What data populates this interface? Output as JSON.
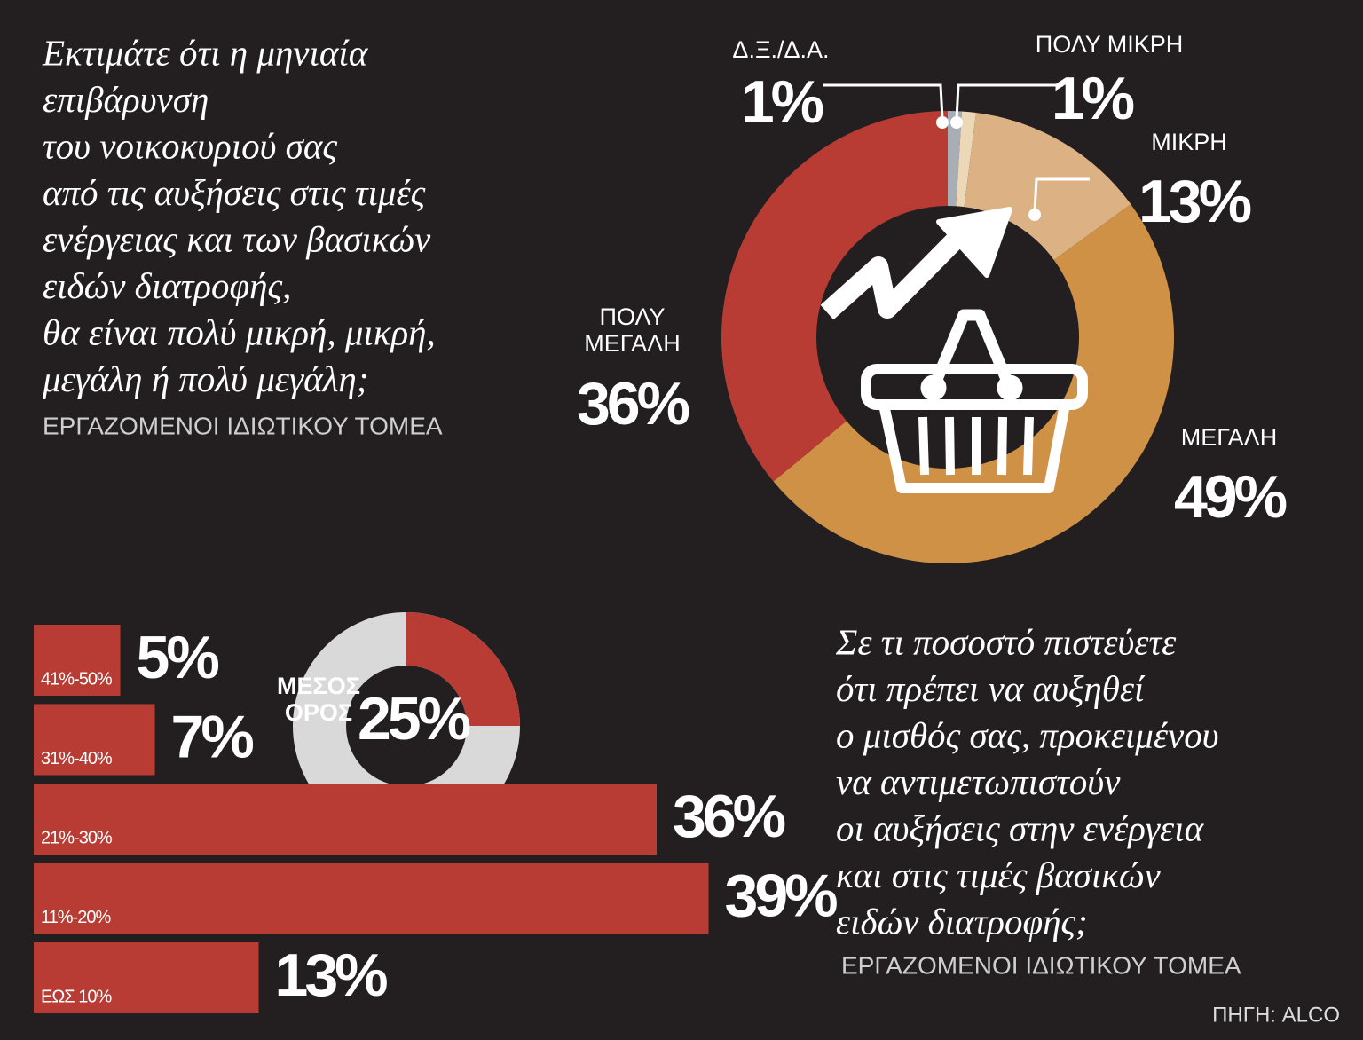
{
  "chart_data": [
    {
      "type": "pie",
      "title": [
        "Εκτιμάτε ότι η μηνιαία",
        "επιβάρυνση",
        "του νοικοκυριού σας",
        "από τις αυξήσεις στις τιμές",
        "ενέργειας και των βασικών",
        "ειδών διατροφής,",
        "θα είναι πολύ μικρή, μικρή,",
        "μεγάλη ή πολύ μεγάλη;"
      ],
      "subtitle": "ΕΡΓΑΖΟΜΕΝΟΙ ΙΔΙΩΤΙΚΟΥ ΤΟΜΕΑ",
      "categories": [
        "Δ.Ξ./Δ.Α.",
        "ΠΟΛΥ ΜΙΚΡΗ",
        "ΜΙΚΡΗ",
        "ΜΕΓΑΛΗ",
        "ΠΟΛΥ ΜΕΓΑΛΗ"
      ],
      "values": [
        1,
        1,
        13,
        49,
        36
      ],
      "value_labels": [
        "1%",
        "1%",
        "13%",
        "49%",
        "36%"
      ],
      "colors": [
        "#a7aeb6",
        "#ecd7b6",
        "#dcb183",
        "#cf9145",
        "#b83c33"
      ]
    },
    {
      "type": "gauge",
      "label": "ΜΕΣΟΣ ΟΡΟΣ",
      "value": 25,
      "value_label": "25%",
      "color": "#b83c33",
      "track_color": "#d9d9d9"
    },
    {
      "type": "bar",
      "title": [
        "Σε τι ποσοστό πιστεύετε",
        "ότι πρέπει να αυξηθεί",
        "ο μισθός σας, προκειμένου",
        "να αντιμετωπιστούν",
        "οι αυξήσεις στην ενέργεια",
        "και στις τιμές βασικών",
        "ειδών διατροφής;"
      ],
      "subtitle": "ΕΡΓΑΖΟΜΕΝΟΙ ΙΔΙΩΤΙΚΟΥ ΤΟΜΕΑ",
      "categories": [
        "41%-50%",
        "31%-40%",
        "21%-30%",
        "11%-20%",
        "ΕΩΣ 10%"
      ],
      "values": [
        5,
        7,
        36,
        39,
        13
      ],
      "value_labels": [
        "5%",
        "7%",
        "36%",
        "39%",
        "13%"
      ],
      "color": "#b83c33"
    }
  ],
  "source": "ΠΗΓΗ: ALCO"
}
